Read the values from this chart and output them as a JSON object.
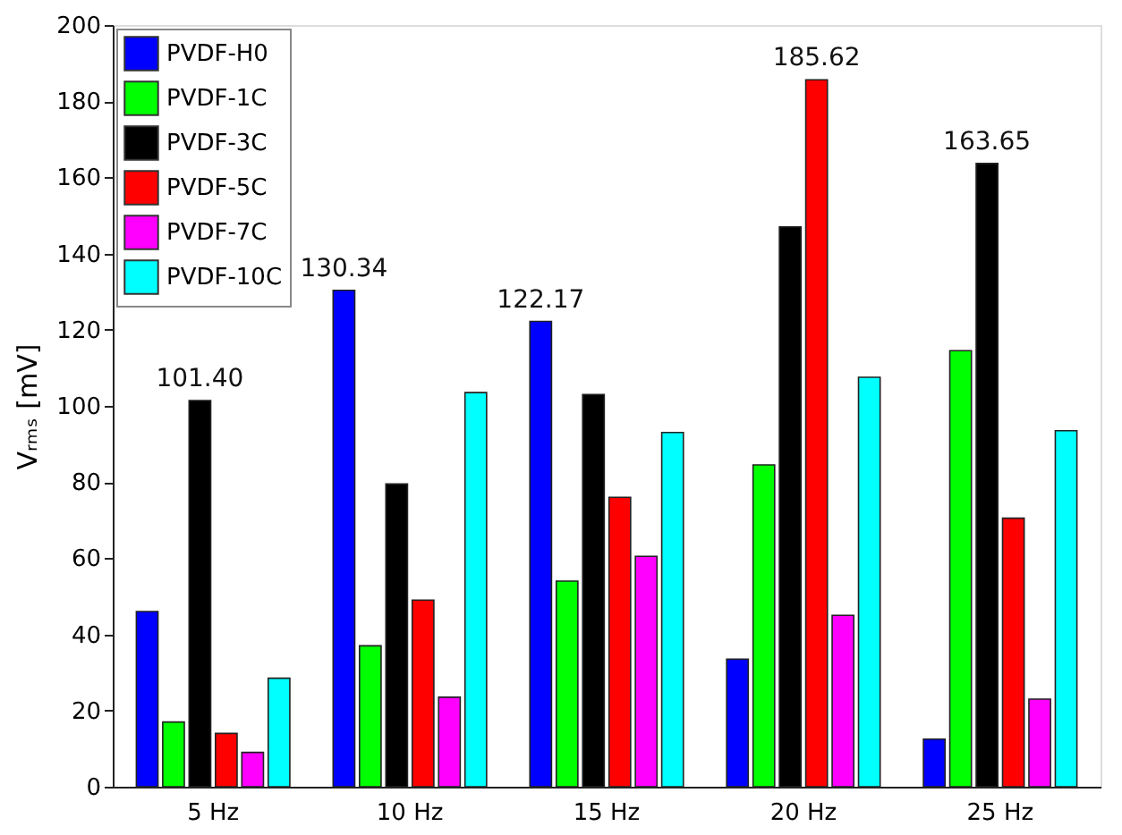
{
  "chart_data": {
    "type": "bar",
    "ylabel": "Vᵣₘₛ [mV]",
    "categories": [
      "5 Hz",
      "10 Hz",
      "15 Hz",
      "20 Hz",
      "25 Hz"
    ],
    "ylim": [
      0,
      200
    ],
    "yticks": [
      0,
      20,
      40,
      60,
      80,
      100,
      120,
      140,
      160,
      180,
      200
    ],
    "grid": false,
    "legend": "top left",
    "series": [
      {
        "name": "PVDF-H0",
        "color": "#0000ff",
        "values": [
          46,
          130.34,
          122.17,
          33.5,
          12.5
        ],
        "value_labels": [
          null,
          "130.34",
          "122.17",
          null,
          null
        ]
      },
      {
        "name": "PVDF-1C",
        "color": "#00ff00",
        "values": [
          17,
          37,
          54,
          84.5,
          114.5
        ],
        "value_labels": [
          null,
          null,
          null,
          null,
          null
        ]
      },
      {
        "name": "PVDF-3C",
        "color": "#000000",
        "values": [
          101.4,
          79.5,
          103,
          147,
          163.65
        ],
        "value_labels": [
          "101.40",
          null,
          null,
          null,
          "163.65"
        ]
      },
      {
        "name": "PVDF-5C",
        "color": "#ff0000",
        "values": [
          14,
          49,
          76,
          185.62,
          70.5
        ],
        "value_labels": [
          null,
          null,
          null,
          "185.62",
          null
        ]
      },
      {
        "name": "PVDF-7C",
        "color": "#ff00ff",
        "values": [
          9,
          23.5,
          60.5,
          45,
          23
        ],
        "value_labels": [
          null,
          null,
          null,
          null,
          null
        ]
      },
      {
        "name": "PVDF-10C",
        "color": "#00ffff",
        "values": [
          28.5,
          103.5,
          93,
          107.5,
          93.5
        ],
        "value_labels": [
          null,
          null,
          null,
          null,
          null
        ]
      }
    ]
  }
}
